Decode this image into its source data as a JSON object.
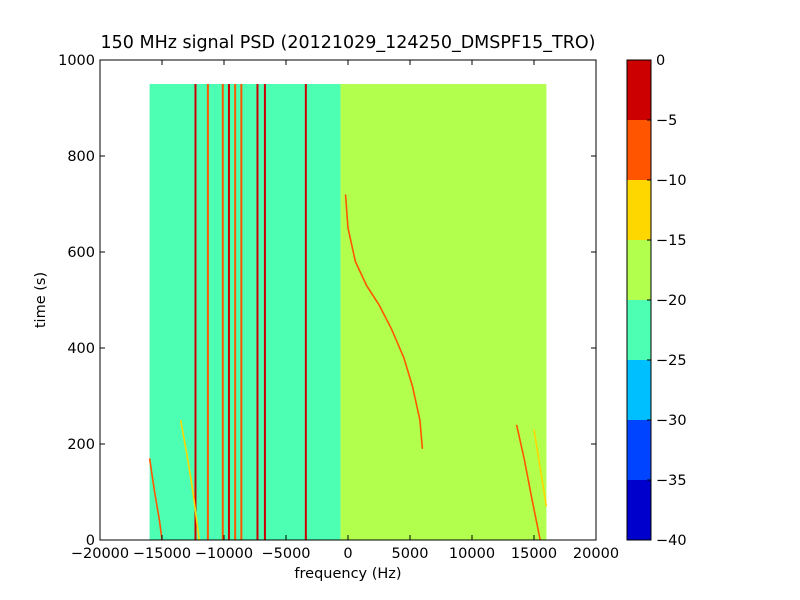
{
  "chart_data": {
    "type": "heatmap",
    "title": "150 MHz signal PSD (20121029_124250_DMSPF15_TRO)",
    "xlabel": "frequency (Hz)",
    "ylabel": "time (s)",
    "xlim": [
      -20000,
      20000
    ],
    "ylim": [
      0,
      1000
    ],
    "xticks": [
      -20000,
      -15000,
      -10000,
      -5000,
      0,
      5000,
      10000,
      15000,
      20000
    ],
    "xtick_labels": [
      "−20000",
      "−15000",
      "−10000",
      "−5000",
      "0",
      "5000",
      "10000",
      "15000",
      "20000"
    ],
    "yticks": [
      0,
      200,
      400,
      600,
      800,
      1000
    ],
    "ytick_labels": [
      "0",
      "200",
      "400",
      "600",
      "800",
      "1000"
    ],
    "data_extent": {
      "x": [
        -16000,
        16000
      ],
      "y": [
        0,
        950
      ]
    },
    "background_regions": [
      {
        "x_from": -16000,
        "x_to": -600,
        "level_db": -22
      },
      {
        "x_from": -600,
        "x_to": 16000,
        "level_db": -17
      }
    ],
    "vertical_lines": [
      {
        "x": -12300,
        "level_db": -3
      },
      {
        "x": -11300,
        "level_db": -8
      },
      {
        "x": -10100,
        "level_db": -8
      },
      {
        "x": -9600,
        "level_db": -3
      },
      {
        "x": -9100,
        "level_db": -8
      },
      {
        "x": -8600,
        "level_db": -8
      },
      {
        "x": -7300,
        "level_db": -3
      },
      {
        "x": -6700,
        "level_db": -3
      },
      {
        "x": -3400,
        "level_db": -3
      }
    ],
    "doppler_traces": [
      {
        "name": "",
        "points": [
          [
            -200,
            720
          ],
          [
            0,
            650
          ],
          [
            600,
            580
          ],
          [
            1500,
            530
          ],
          [
            2500,
            490
          ],
          [
            3500,
            440
          ],
          [
            4500,
            380
          ],
          [
            5200,
            320
          ],
          [
            5800,
            250
          ],
          [
            6000,
            190
          ]
        ],
        "level_db": -8
      },
      {
        "name": "",
        "points": [
          [
            -16000,
            170
          ],
          [
            -15600,
            100
          ],
          [
            -15200,
            40
          ],
          [
            -15000,
            0
          ]
        ],
        "level_db": -10
      },
      {
        "name": "",
        "points": [
          [
            -13500,
            250
          ],
          [
            -13000,
            180
          ],
          [
            -12500,
            100
          ],
          [
            -12000,
            0
          ]
        ],
        "level_db": -12
      },
      {
        "name": "",
        "points": [
          [
            13600,
            240
          ],
          [
            14200,
            170
          ],
          [
            14800,
            90
          ],
          [
            15500,
            0
          ]
        ],
        "level_db": -8
      },
      {
        "name": "",
        "points": [
          [
            15000,
            230
          ],
          [
            15500,
            150
          ],
          [
            16000,
            70
          ]
        ],
        "level_db": -12
      }
    ],
    "colorbar": {
      "min": -40,
      "max": 0,
      "ticks": [
        0,
        -5,
        -10,
        -15,
        -20,
        -25,
        -30,
        -35,
        -40
      ],
      "tick_labels": [
        "0",
        "−5",
        "−10",
        "−15",
        "−20",
        "−25",
        "−30",
        "−35",
        "−40"
      ],
      "levels": [
        {
          "from": -5,
          "to": 0,
          "color": "#cc0000"
        },
        {
          "from": -10,
          "to": -5,
          "color": "#ff5500"
        },
        {
          "from": -15,
          "to": -10,
          "color": "#ffd700"
        },
        {
          "from": -20,
          "to": -15,
          "color": "#b3ff4d"
        },
        {
          "from": -25,
          "to": -20,
          "color": "#4dffb3"
        },
        {
          "from": -30,
          "to": -25,
          "color": "#00bfff"
        },
        {
          "from": -35,
          "to": -30,
          "color": "#0044ff"
        },
        {
          "from": -40,
          "to": -35,
          "color": "#0000cc"
        }
      ]
    },
    "grid": false,
    "legend": "none"
  }
}
